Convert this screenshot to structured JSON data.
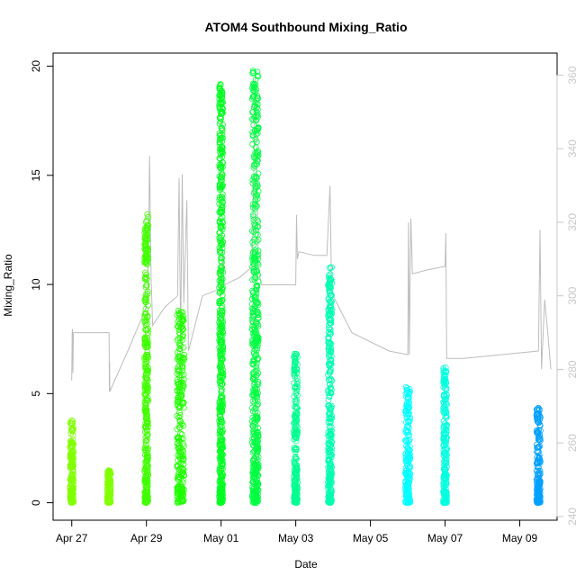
{
  "chart_data": {
    "type": "scatter",
    "title": "ATOM4 Southbound Mixing_Ratio",
    "xlabel": "Date",
    "ylabel": "Mixing_Ratio",
    "x_ticks": [
      "Apr 27",
      "Apr 29",
      "May 01",
      "May 03",
      "May 05",
      "May 07",
      "May 09"
    ],
    "y_ticks": [
      0,
      5,
      10,
      15,
      20
    ],
    "y2_ticks": [
      240,
      260,
      280,
      300,
      320,
      340,
      360
    ],
    "xlim": [
      "2018-04-26 12:00",
      "2018-05-10 00:00"
    ],
    "ylim": [
      -0.8,
      20.6
    ],
    "y2lim": [
      239,
      366
    ],
    "scatter_series": [
      {
        "center": "2018-04-27 00:00",
        "width_h": 1.5,
        "ymax": 3.8,
        "color": "#80ff00"
      },
      {
        "center": "2018-04-28 00:00",
        "width_h": 1.0,
        "ymax": 1.5,
        "color": "#80ff00"
      },
      {
        "center": "2018-04-29 00:00",
        "width_h": 1.6,
        "ymax": 13.3,
        "color": "#40ff00"
      },
      {
        "center": "2018-04-29 22:00",
        "width_h": 4.5,
        "ymax": 8.8,
        "color": "#20ff00"
      },
      {
        "center": "2018-05-01 00:00",
        "width_h": 2.0,
        "ymax": 19.3,
        "color": "#00ff20"
      },
      {
        "center": "2018-05-01 22:00",
        "width_h": 4.0,
        "ymax": 19.8,
        "color": "#00ff40"
      },
      {
        "center": "2018-05-03 00:00",
        "width_h": 2.0,
        "ymax": 6.9,
        "color": "#00ff90"
      },
      {
        "center": "2018-05-03 22:00",
        "width_h": 2.4,
        "ymax": 10.8,
        "color": "#00ffb0"
      },
      {
        "center": "2018-05-06 00:00",
        "width_h": 3.0,
        "ymax": 5.3,
        "color": "#00ffff"
      },
      {
        "center": "2018-05-07 00:00",
        "width_h": 1.8,
        "ymax": 6.2,
        "color": "#00ffe0"
      },
      {
        "center": "2018-05-09 12:00",
        "width_h": 2.5,
        "ymax": 4.4,
        "color": "#00a0ff"
      }
    ],
    "secondary_line": {
      "name": "",
      "color": "#bdbdbd",
      "points": [
        [
          "2018-04-27 00:00",
          277
        ],
        [
          "2018-04-27 00:15",
          290
        ],
        [
          "2018-04-27 00:30",
          291
        ],
        [
          "2018-04-27 00:45",
          279
        ],
        [
          "2018-04-27 01:00",
          290
        ],
        [
          "2018-04-27 02:00",
          290
        ],
        [
          "2018-04-27 12:00",
          290
        ],
        [
          "2018-04-27 23:00",
          290
        ],
        [
          "2018-04-28 00:00",
          290
        ],
        [
          "2018-04-28 00:10",
          274
        ],
        [
          "2018-04-28 00:20",
          282
        ],
        [
          "2018-04-28 00:30",
          274
        ],
        [
          "2018-04-28 12:00",
          285
        ],
        [
          "2018-04-29 00:00",
          297
        ],
        [
          "2018-04-29 01:00",
          302
        ],
        [
          "2018-04-29 02:00",
          338
        ],
        [
          "2018-04-29 03:00",
          305
        ],
        [
          "2018-04-29 04:00",
          292
        ],
        [
          "2018-04-29 12:00",
          297
        ],
        [
          "2018-04-29 20:00",
          300
        ],
        [
          "2018-04-29 21:00",
          332
        ],
        [
          "2018-04-29 22:00",
          288
        ],
        [
          "2018-04-29 23:00",
          333
        ],
        [
          "2018-04-30 00:00",
          298
        ],
        [
          "2018-04-30 02:00",
          326
        ],
        [
          "2018-04-30 03:00",
          285
        ],
        [
          "2018-04-30 12:00",
          300
        ],
        [
          "2018-05-01 00:00",
          302
        ],
        [
          "2018-05-01 01:00",
          312
        ],
        [
          "2018-05-01 02:00",
          303
        ],
        [
          "2018-05-01 12:00",
          305
        ],
        [
          "2018-05-01 20:00",
          308
        ],
        [
          "2018-05-01 22:00",
          360
        ],
        [
          "2018-05-02 00:00",
          307
        ],
        [
          "2018-05-02 02:00",
          303
        ],
        [
          "2018-05-02 12:00",
          303
        ],
        [
          "2018-05-03 00:00",
          303
        ],
        [
          "2018-05-03 00:30",
          322
        ],
        [
          "2018-05-03 01:00",
          310
        ],
        [
          "2018-05-03 02:00",
          312
        ],
        [
          "2018-05-03 12:00",
          311
        ],
        [
          "2018-05-03 20:00",
          311
        ],
        [
          "2018-05-03 22:00",
          330
        ],
        [
          "2018-05-03 23:00",
          302
        ],
        [
          "2018-05-04 00:00",
          300
        ],
        [
          "2018-05-04 12:00",
          290
        ],
        [
          "2018-05-05 12:00",
          285
        ],
        [
          "2018-05-06 00:00",
          284
        ],
        [
          "2018-05-06 00:30",
          320
        ],
        [
          "2018-05-06 01:00",
          284
        ],
        [
          "2018-05-06 02:00",
          321
        ],
        [
          "2018-05-06 03:00",
          306
        ],
        [
          "2018-05-06 12:00",
          307
        ],
        [
          "2018-05-07 00:00",
          308
        ],
        [
          "2018-05-07 00:30",
          317
        ],
        [
          "2018-05-07 01:00",
          283
        ],
        [
          "2018-05-07 12:00",
          283
        ],
        [
          "2018-05-08 12:00",
          284
        ],
        [
          "2018-05-09 12:00",
          285
        ],
        [
          "2018-05-09 13:00",
          318
        ],
        [
          "2018-05-09 14:00",
          280
        ],
        [
          "2018-05-09 16:00",
          299
        ],
        [
          "2018-05-09 18:00",
          290
        ],
        [
          "2018-05-09 20:00",
          280
        ]
      ]
    },
    "grid": false,
    "legend": "none"
  }
}
